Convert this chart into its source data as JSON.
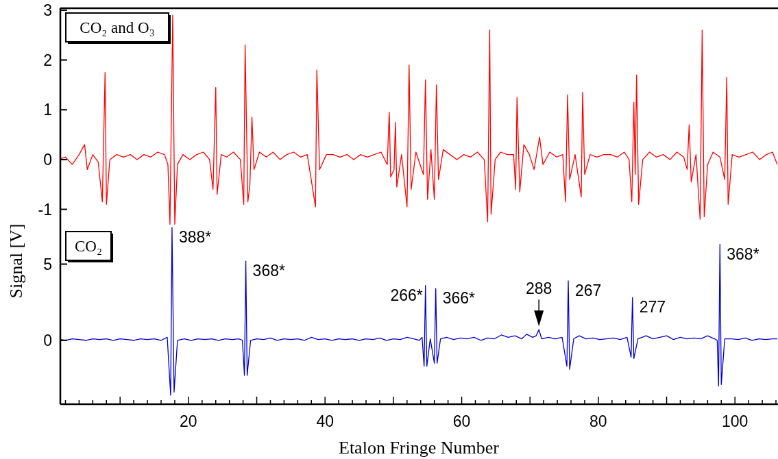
{
  "chart_data": [
    {
      "type": "line",
      "xlim": [
        1.25,
        106.2
      ],
      "ylim": [
        -1.35,
        3.04
      ],
      "yticks": [
        3,
        2,
        1,
        0,
        -1
      ],
      "tick_labels": "y",
      "grid": false,
      "annotations": [
        "CO₂ and O₃"
      ],
      "series": [
        {
          "color": "#ff0000",
          "x": [
            1.3,
            2,
            3,
            4,
            4.8,
            5.2,
            6,
            6.8,
            7.4,
            7.8,
            8.0,
            8.5,
            9.5,
            10.5,
            11.5,
            12.5,
            13.5,
            14.5,
            15.5,
            16.5,
            17.0,
            17.3,
            17.7,
            18.0,
            18.4,
            19.2,
            20.2,
            21.2,
            22.2,
            23.1,
            23.6,
            24.0,
            24.2,
            24.8,
            25.6,
            26.6,
            27.6,
            28.1,
            28.3,
            28.7,
            29.0,
            29.3,
            29.6,
            30.4,
            31.4,
            32.4,
            33.4,
            34.4,
            35.4,
            36.4,
            37.4,
            38.6,
            38.8,
            39.2,
            40.2,
            41.2,
            42.2,
            43.2,
            44.2,
            45.2,
            46.2,
            47.2,
            48.2,
            49.1,
            49.4,
            49.6,
            50.1,
            50.3,
            50.5,
            51.2,
            52.0,
            52.3,
            52.6,
            53.3,
            54.4,
            54.7,
            55.0,
            55.5,
            56.0,
            56.3,
            56.6,
            57.3,
            58.3,
            59.3,
            60.3,
            61.3,
            62.3,
            63.3,
            63.8,
            64.1,
            64.3,
            64.9,
            65.7,
            66.7,
            67.6,
            67.9,
            68.1,
            68.5,
            69.1,
            69.9,
            70.6,
            71.4,
            71.9,
            72.9,
            73.9,
            74.8,
            75.2,
            75.5,
            75.8,
            76.6,
            77.5,
            77.7,
            78.0,
            78.8,
            79.8,
            80.8,
            81.8,
            82.8,
            83.8,
            84.5,
            84.9,
            85.2,
            85.4,
            85.6,
            85.9,
            86.5,
            87.5,
            88.5,
            89.5,
            90.5,
            91.5,
            92.5,
            93.0,
            93.3,
            93.6,
            94.3,
            94.9,
            95.2,
            95.5,
            96.0,
            96.8,
            97.8,
            98.5,
            98.8,
            99.0,
            99.6,
            100.6,
            101.6,
            102.6,
            103.6,
            104.6,
            105.5,
            106.2
          ],
          "values": [
            0.02,
            0.05,
            -0.1,
            0.1,
            0.3,
            -0.2,
            0.1,
            -0.05,
            -0.85,
            1.75,
            -0.9,
            0.0,
            0.1,
            0.05,
            0.1,
            0.0,
            0.1,
            0.05,
            0.15,
            0.1,
            -0.1,
            -1.3,
            2.9,
            -1.3,
            -0.1,
            0.1,
            0.0,
            0.1,
            0.15,
            0.0,
            -0.6,
            1.45,
            -0.7,
            0.1,
            0.05,
            0.15,
            0.0,
            -0.9,
            2.3,
            -0.85,
            -0.5,
            0.85,
            -0.2,
            0.15,
            0.05,
            0.15,
            0.0,
            0.1,
            0.15,
            0.05,
            0.1,
            -0.95,
            1.8,
            -0.2,
            0.1,
            0.1,
            0.05,
            0.1,
            0.0,
            0.1,
            0.05,
            0.1,
            0.15,
            -0.1,
            0.95,
            -0.35,
            -0.2,
            0.75,
            -0.55,
            0.1,
            -0.95,
            1.9,
            -0.6,
            0.15,
            -0.3,
            1.6,
            -0.8,
            0.2,
            -0.8,
            1.5,
            -0.4,
            0.2,
            0.1,
            0.0,
            0.1,
            0.05,
            0.15,
            0.0,
            -1.25,
            2.6,
            -1.1,
            0.0,
            0.15,
            0.1,
            0.1,
            -0.6,
            1.25,
            -0.65,
            0.3,
            0.1,
            -0.2,
            0.45,
            -0.1,
            0.15,
            0.05,
            0.1,
            -0.85,
            1.3,
            -0.4,
            0.1,
            -0.75,
            1.35,
            -0.3,
            0.1,
            0.05,
            0.1,
            0.1,
            0.05,
            0.15,
            0.0,
            -0.85,
            1.15,
            -0.3,
            1.7,
            -0.9,
            0.0,
            0.15,
            0.05,
            0.1,
            0.0,
            0.15,
            0.05,
            -0.2,
            0.7,
            -0.45,
            0.1,
            -1.2,
            2.6,
            -1.15,
            -0.1,
            0.15,
            0.05,
            -0.4,
            1.65,
            -0.9,
            0.1,
            0.05,
            0.1,
            0.15,
            0.0,
            0.1,
            0.15,
            -0.1
          ]
        }
      ]
    },
    {
      "type": "line",
      "xlim": [
        1.25,
        106.2
      ],
      "ylim": [
        -4.19,
        7.45
      ],
      "yticks": [
        5,
        0
      ],
      "grid": false,
      "xlabel": "Etalon Fringe Number",
      "ylabel": "Signal [V]",
      "xticks": [
        {
          "value": 2,
          "label": null
        },
        {
          "value": 4,
          "label": null
        },
        {
          "value": 6,
          "label": null
        },
        {
          "value": 8,
          "label": null
        },
        {
          "value": 10,
          "label": null
        },
        {
          "value": 12,
          "label": null
        },
        {
          "value": 14,
          "label": null
        },
        {
          "value": 16,
          "label": null
        },
        {
          "value": 18,
          "label": null
        },
        20,
        {
          "value": 22,
          "label": null
        },
        {
          "value": 24,
          "label": null
        },
        {
          "value": 26,
          "label": null
        },
        {
          "value": 28,
          "label": null
        },
        {
          "value": 30,
          "label": null
        },
        {
          "value": 32,
          "label": null
        },
        {
          "value": 34,
          "label": null
        },
        {
          "value": 36,
          "label": null
        },
        {
          "value": 38,
          "label": null
        },
        40,
        {
          "value": 42,
          "label": null
        },
        {
          "value": 44,
          "label": null
        },
        {
          "value": 46,
          "label": null
        },
        {
          "value": 48,
          "label": null
        },
        {
          "value": 50,
          "label": null
        },
        {
          "value": 52,
          "label": null
        },
        {
          "value": 54,
          "label": null
        },
        {
          "value": 56,
          "label": null
        },
        {
          "value": 58,
          "label": null
        },
        60,
        {
          "value": 62,
          "label": null
        },
        {
          "value": 64,
          "label": null
        },
        {
          "value": 66,
          "label": null
        },
        {
          "value": 68,
          "label": null
        },
        {
          "value": 70,
          "label": null
        },
        {
          "value": 72,
          "label": null
        },
        {
          "value": 74,
          "label": null
        },
        {
          "value": 76,
          "label": null
        },
        {
          "value": 78,
          "label": null
        },
        80,
        {
          "value": 82,
          "label": null
        },
        {
          "value": 84,
          "label": null
        },
        {
          "value": 86,
          "label": null
        },
        {
          "value": 88,
          "label": null
        },
        {
          "value": 90,
          "label": null
        },
        {
          "value": 92,
          "label": null
        },
        {
          "value": 94,
          "label": null
        },
        {
          "value": 96,
          "label": null
        },
        {
          "value": 98,
          "label": null
        },
        100,
        {
          "value": 102,
          "label": null
        },
        {
          "value": 104,
          "label": null
        },
        {
          "value": 106,
          "label": null
        }
      ],
      "annotations": [
        "CO₂",
        {
          "text": "388*",
          "x": 17.6,
          "y": 7.4
        },
        {
          "text": "368*",
          "x": 28.4,
          "y": 5.2
        },
        {
          "text": "266*",
          "x": 54.7,
          "y": 3.6
        },
        {
          "text": "366*",
          "x": 56.2,
          "y": 3.4
        },
        {
          "text": "288",
          "x": 71.3,
          "y": 0.7
        },
        {
          "text": "267",
          "x": 75.6,
          "y": 3.9
        },
        {
          "text": "277",
          "x": 85.0,
          "y": 2.8
        },
        {
          "text": "368*",
          "x": 97.8,
          "y": 6.3
        }
      ],
      "series": [
        {
          "color": "#0000cc",
          "x": [
            1.3,
            2,
            3,
            4,
            5,
            6,
            7,
            8,
            9,
            10,
            11,
            12,
            13,
            14,
            15,
            16,
            16.9,
            17.4,
            17.6,
            17.9,
            18.4,
            19.4,
            20.4,
            21.4,
            22.4,
            23.4,
            24.4,
            25.4,
            26.4,
            27.4,
            27.9,
            28.2,
            28.4,
            28.6,
            29.1,
            30,
            31,
            32,
            33,
            34,
            35,
            36,
            37,
            38,
            39,
            40,
            41,
            42,
            43,
            44,
            45,
            46,
            47,
            48,
            49,
            50,
            51,
            52,
            53,
            53.8,
            54.2,
            54.5,
            54.7,
            54.9,
            55.4,
            56.0,
            56.2,
            56.4,
            56.9,
            57.8,
            58.8,
            59.8,
            60.8,
            61.8,
            62.8,
            63.8,
            64.8,
            65.8,
            66.8,
            67.8,
            68.8,
            69.5,
            70.4,
            70.9,
            71.3,
            71.7,
            72.7,
            73.7,
            74.7,
            75.4,
            75.6,
            75.8,
            76.4,
            77.2,
            78.2,
            79.2,
            80.2,
            81.2,
            82.2,
            83.2,
            84.2,
            84.8,
            85.0,
            85.2,
            85.8,
            87,
            88,
            89,
            90,
            91,
            92,
            93,
            94,
            95,
            96,
            97,
            97.4,
            97.6,
            97.8,
            98.0,
            98.5,
            99.5,
            100.5,
            101.5,
            102.5,
            103.5,
            104.5,
            105.5,
            106.2
          ],
          "values": [
            0.05,
            0.0,
            0.1,
            0.05,
            0.0,
            0.1,
            0.05,
            0.1,
            0.0,
            0.1,
            0.05,
            0.0,
            0.1,
            0.05,
            0.1,
            0.0,
            0.2,
            -3.6,
            7.4,
            -3.4,
            0.0,
            0.1,
            0.0,
            0.1,
            0.05,
            0.1,
            0.0,
            0.1,
            0.05,
            0.1,
            0.0,
            -2.3,
            5.2,
            -2.3,
            0.0,
            0.1,
            0.05,
            0.15,
            0.0,
            0.1,
            0.05,
            0.1,
            0.0,
            0.2,
            0.05,
            0.1,
            0.0,
            0.1,
            0.05,
            0.1,
            0.0,
            0.1,
            0.05,
            0.15,
            0.0,
            0.1,
            0.05,
            0.2,
            0.1,
            0.0,
            0.2,
            -1.7,
            3.6,
            -1.7,
            0.1,
            -1.5,
            3.4,
            -1.5,
            0.1,
            0.2,
            0.05,
            0.15,
            0.1,
            0.2,
            0.0,
            0.15,
            0.1,
            0.35,
            0.2,
            0.3,
            0.1,
            0.4,
            0.2,
            0.3,
            0.7,
            0.1,
            0.2,
            0.1,
            0.2,
            -1.7,
            3.9,
            -1.9,
            0.1,
            0.3,
            0.1,
            0.15,
            0.05,
            0.1,
            0.15,
            0.05,
            0.2,
            -1.1,
            2.8,
            -1.2,
            0.1,
            0.3,
            0.1,
            0.2,
            0.3,
            0.05,
            0.2,
            0.1,
            0.15,
            0.1,
            0.3,
            0.1,
            0.0,
            -3.0,
            6.3,
            -2.9,
            0.1,
            0.1,
            0.05,
            0.15,
            0.0,
            0.1,
            0.05,
            0.1,
            0.1
          ]
        }
      ]
    }
  ]
}
